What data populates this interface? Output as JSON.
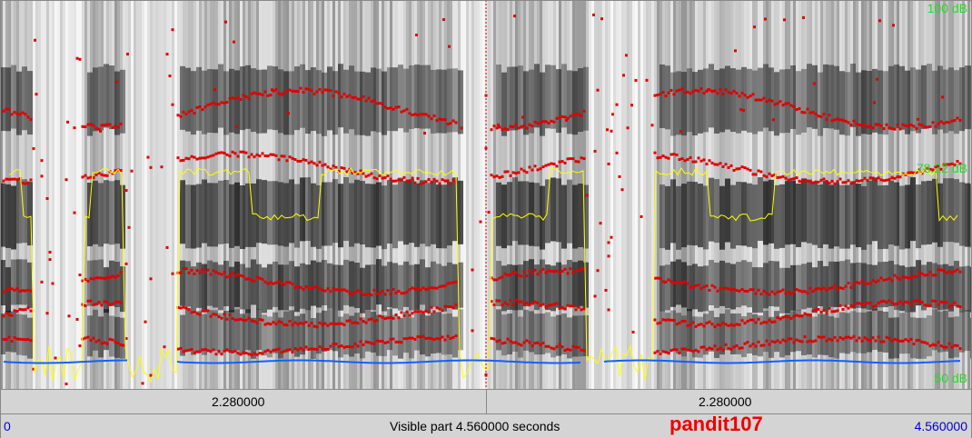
{
  "spectrogram": {
    "db_labels": {
      "top": "100 dB",
      "middle": "78.22 dB",
      "bottom": "50 dB"
    }
  },
  "selection_bar": {
    "left": "2.280000",
    "right": "2.280000"
  },
  "status_bar": {
    "start": "0",
    "visible": "Visible part 4.560000 seconds",
    "name": "pandit107",
    "end": "4.560000"
  }
}
